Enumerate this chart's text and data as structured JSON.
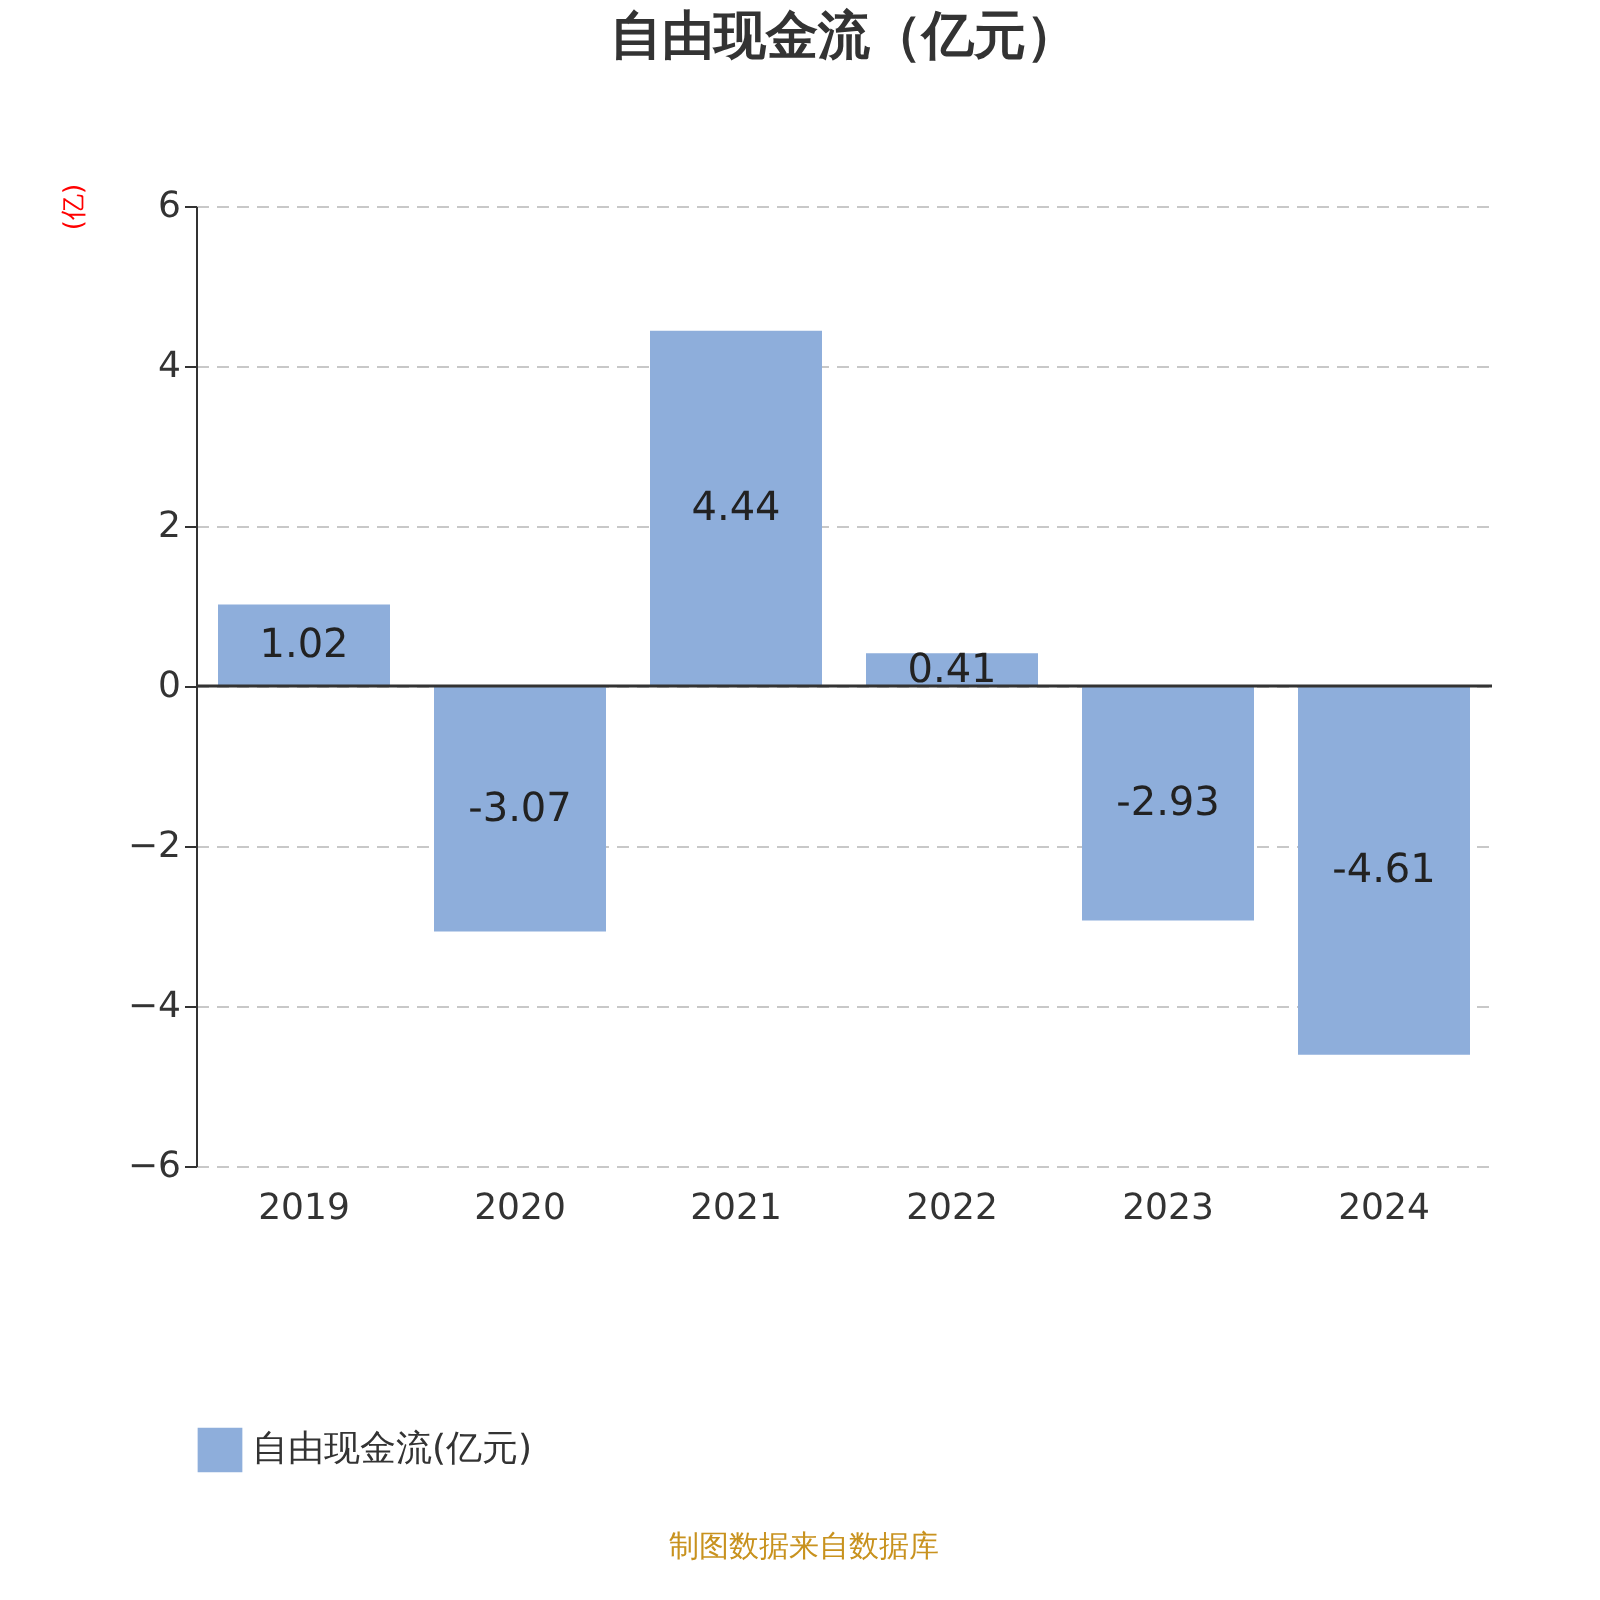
{
  "chart_data": {
    "type": "bar",
    "title": "自由现金流（亿元）",
    "ylabel": "(亿)",
    "categories": [
      "2019",
      "2020",
      "2021",
      "2022",
      "2023",
      "2024"
    ],
    "series": [
      {
        "name": "自由现金流(亿元)",
        "color": "#8eaedb",
        "values": [
          1.02,
          -3.07,
          4.44,
          0.41,
          -2.93,
          -4.61
        ]
      }
    ],
    "ylim": [
      -6,
      6
    ],
    "yticks": [
      -6,
      -4,
      -2,
      0,
      2,
      4,
      6
    ],
    "grid": "y",
    "legend": "bottom",
    "data_labels": true,
    "annotations": [
      "制图数据来自数据库"
    ]
  }
}
